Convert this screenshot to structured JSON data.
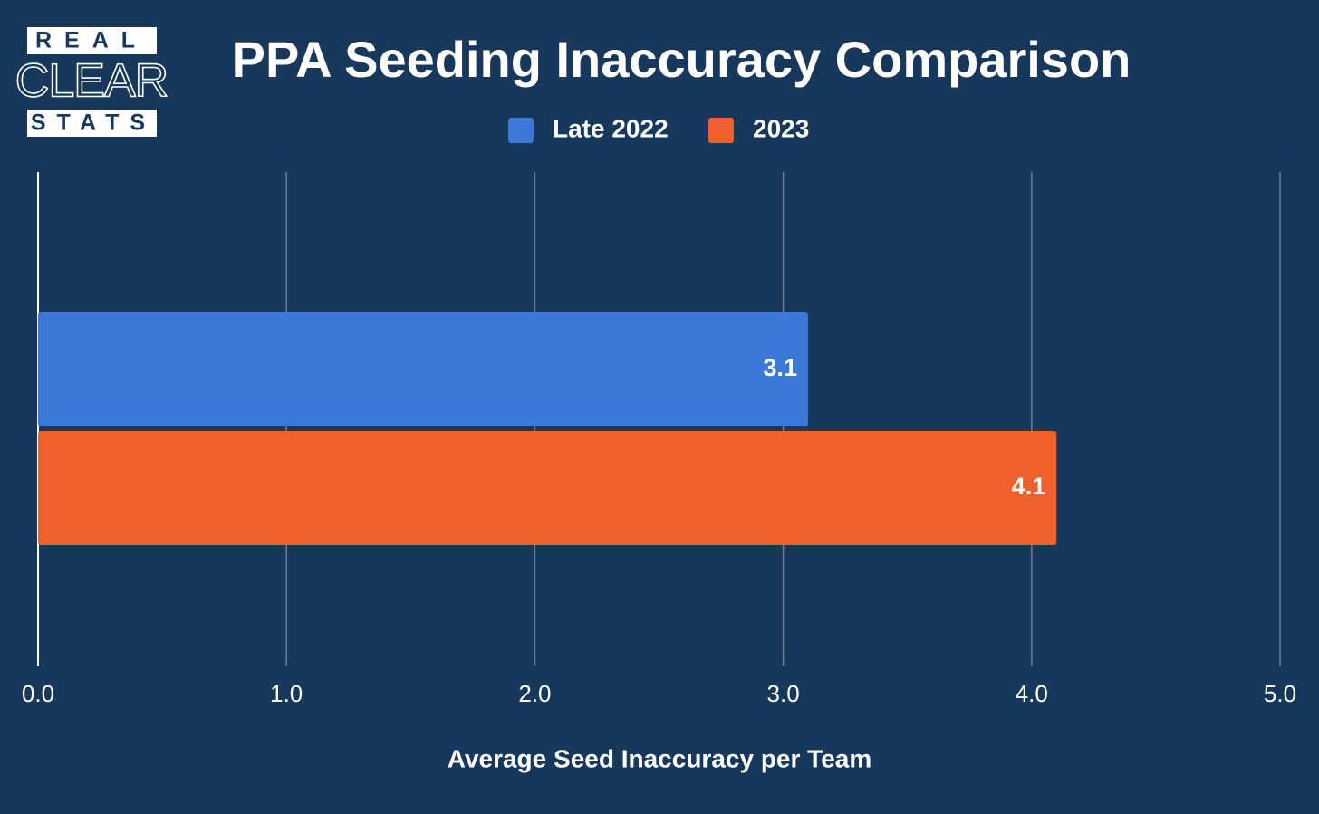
{
  "logo": {
    "lines": [
      "REAL",
      "CLEAR",
      "STATS"
    ]
  },
  "chart_data": {
    "type": "hbar",
    "title": "PPA Seeding Inaccuracy Comparison",
    "x_label": "Average Seed Inaccuracy per Team",
    "categories": [
      null
    ],
    "series": [
      {
        "name": "Late 2022",
        "color": "#3c78d8",
        "values": [
          3.1
        ]
      },
      {
        "name": "2023",
        "color": "#ee602d",
        "values": [
          4.1
        ]
      }
    ],
    "xlim": [
      0,
      5
    ],
    "xticks": [
      {
        "value": 0,
        "label": "0.0"
      },
      {
        "value": 1,
        "label": "1.0"
      },
      {
        "value": 2,
        "label": "2.0"
      },
      {
        "value": 3,
        "label": "3.0"
      },
      {
        "value": 4,
        "label": "4.0"
      },
      {
        "value": 5,
        "label": "5.0"
      }
    ],
    "grid": true,
    "legend": "top"
  }
}
